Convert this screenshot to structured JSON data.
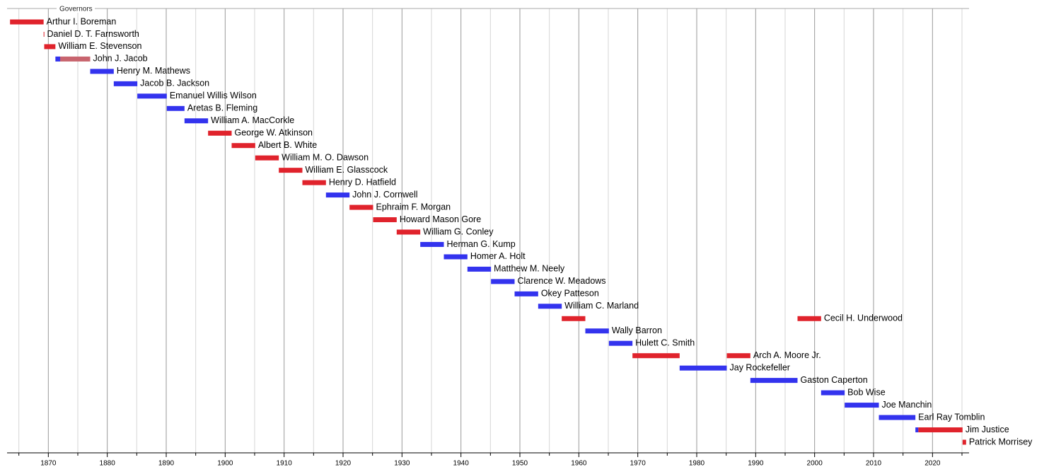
{
  "chart_data": {
    "type": "timeline",
    "title": "Governors",
    "xlim": [
      1863,
      2026.2
    ],
    "xticks": [
      1870,
      1880,
      1890,
      1900,
      1910,
      1920,
      1930,
      1940,
      1950,
      1960,
      1970,
      1980,
      1990,
      2000,
      2010,
      2020
    ],
    "minor_xticks": [
      1865,
      1875,
      1885,
      1895,
      1905,
      1915,
      1925,
      1935,
      1945,
      1955,
      1965,
      1975,
      1985,
      1995,
      2005,
      2015,
      2025
    ],
    "grid": true,
    "rows": [
      {
        "label": "Arthur I. Boreman",
        "spans": [
          {
            "start": 1863.5,
            "end": 1869.2,
            "color": "#e0232c"
          }
        ]
      },
      {
        "label": "Daniel D. T. Farnsworth",
        "spans": [
          {
            "start": 1869.2,
            "end": 1869.3,
            "color": "#e0232c"
          }
        ]
      },
      {
        "label": "William E. Stevenson",
        "spans": [
          {
            "start": 1869.3,
            "end": 1871.2,
            "color": "#e0232c"
          }
        ]
      },
      {
        "label": "John J. Jacob",
        "spans": [
          {
            "start": 1871.2,
            "end": 1872.0,
            "color": "#3333ee"
          },
          {
            "start": 1872.0,
            "end": 1877.1,
            "color": "#c8646e"
          }
        ]
      },
      {
        "label": "Henry M. Mathews",
        "spans": [
          {
            "start": 1877.1,
            "end": 1881.1,
            "color": "#3333ee"
          }
        ]
      },
      {
        "label": "Jacob B. Jackson",
        "spans": [
          {
            "start": 1881.1,
            "end": 1885.1,
            "color": "#3333ee"
          }
        ]
      },
      {
        "label": "Emanuel Willis Wilson",
        "spans": [
          {
            "start": 1885.1,
            "end": 1890.1,
            "color": "#3333ee"
          }
        ]
      },
      {
        "label": "Aretas B. Fleming",
        "spans": [
          {
            "start": 1890.1,
            "end": 1893.1,
            "color": "#3333ee"
          }
        ]
      },
      {
        "label": "William A. MacCorkle",
        "spans": [
          {
            "start": 1893.1,
            "end": 1897.1,
            "color": "#3333ee"
          }
        ]
      },
      {
        "label": "George W. Atkinson",
        "spans": [
          {
            "start": 1897.1,
            "end": 1901.1,
            "color": "#e0232c"
          }
        ]
      },
      {
        "label": "Albert B. White",
        "spans": [
          {
            "start": 1901.1,
            "end": 1905.1,
            "color": "#e0232c"
          }
        ]
      },
      {
        "label": "William M. O. Dawson",
        "spans": [
          {
            "start": 1905.1,
            "end": 1909.1,
            "color": "#e0232c"
          }
        ]
      },
      {
        "label": "William E. Glasscock",
        "spans": [
          {
            "start": 1909.1,
            "end": 1913.1,
            "color": "#e0232c"
          }
        ]
      },
      {
        "label": "Henry D. Hatfield",
        "spans": [
          {
            "start": 1913.1,
            "end": 1917.1,
            "color": "#e0232c"
          }
        ]
      },
      {
        "label": "John J. Cornwell",
        "spans": [
          {
            "start": 1917.1,
            "end": 1921.1,
            "color": "#3333ee"
          }
        ]
      },
      {
        "label": "Ephraim F. Morgan",
        "spans": [
          {
            "start": 1921.1,
            "end": 1925.1,
            "color": "#e0232c"
          }
        ]
      },
      {
        "label": "Howard Mason Gore",
        "spans": [
          {
            "start": 1925.1,
            "end": 1929.1,
            "color": "#e0232c"
          }
        ]
      },
      {
        "label": "William G. Conley",
        "spans": [
          {
            "start": 1929.1,
            "end": 1933.1,
            "color": "#e0232c"
          }
        ]
      },
      {
        "label": "Herman G. Kump",
        "spans": [
          {
            "start": 1933.1,
            "end": 1937.1,
            "color": "#3333ee"
          }
        ]
      },
      {
        "label": "Homer A. Holt",
        "spans": [
          {
            "start": 1937.1,
            "end": 1941.1,
            "color": "#3333ee"
          }
        ]
      },
      {
        "label": "Matthew M. Neely",
        "spans": [
          {
            "start": 1941.1,
            "end": 1945.1,
            "color": "#3333ee"
          }
        ]
      },
      {
        "label": "Clarence W. Meadows",
        "spans": [
          {
            "start": 1945.1,
            "end": 1949.1,
            "color": "#3333ee"
          }
        ]
      },
      {
        "label": "Okey Patteson",
        "spans": [
          {
            "start": 1949.1,
            "end": 1953.1,
            "color": "#3333ee"
          }
        ]
      },
      {
        "label": "William C. Marland",
        "spans": [
          {
            "start": 1953.1,
            "end": 1957.1,
            "color": "#3333ee"
          }
        ]
      },
      {
        "label": "Cecil H. Underwood",
        "spans": [
          {
            "start": 1957.1,
            "end": 1961.1,
            "color": "#e0232c"
          },
          {
            "start": 1997.1,
            "end": 2001.1,
            "color": "#e0232c"
          }
        ]
      },
      {
        "label": "Wally Barron",
        "spans": [
          {
            "start": 1961.1,
            "end": 1965.1,
            "color": "#3333ee"
          }
        ]
      },
      {
        "label": "Hulett C. Smith",
        "spans": [
          {
            "start": 1965.1,
            "end": 1969.1,
            "color": "#3333ee"
          }
        ]
      },
      {
        "label": "Arch A. Moore Jr.",
        "spans": [
          {
            "start": 1969.1,
            "end": 1977.1,
            "color": "#e0232c"
          },
          {
            "start": 1985.1,
            "end": 1989.1,
            "color": "#e0232c"
          }
        ]
      },
      {
        "label": "Jay Rockefeller",
        "spans": [
          {
            "start": 1977.1,
            "end": 1985.1,
            "color": "#3333ee"
          }
        ]
      },
      {
        "label": "Gaston Caperton",
        "spans": [
          {
            "start": 1989.1,
            "end": 1997.1,
            "color": "#3333ee"
          }
        ]
      },
      {
        "label": "Bob Wise",
        "spans": [
          {
            "start": 2001.1,
            "end": 2005.1,
            "color": "#3333ee"
          }
        ]
      },
      {
        "label": "Joe Manchin",
        "spans": [
          {
            "start": 2005.1,
            "end": 2010.9,
            "color": "#3333ee"
          }
        ]
      },
      {
        "label": "Earl Ray Tomblin",
        "spans": [
          {
            "start": 2010.9,
            "end": 2017.1,
            "color": "#3333ee"
          }
        ]
      },
      {
        "label": "Jim Justice",
        "spans": [
          {
            "start": 2017.1,
            "end": 2017.6,
            "color": "#3333ee"
          },
          {
            "start": 2017.6,
            "end": 2025.1,
            "color": "#e0232c"
          }
        ]
      },
      {
        "label": "Patrick Morrisey",
        "spans": [
          {
            "start": 2025.1,
            "end": 2025.7,
            "color": "#e0232c"
          }
        ]
      }
    ]
  }
}
